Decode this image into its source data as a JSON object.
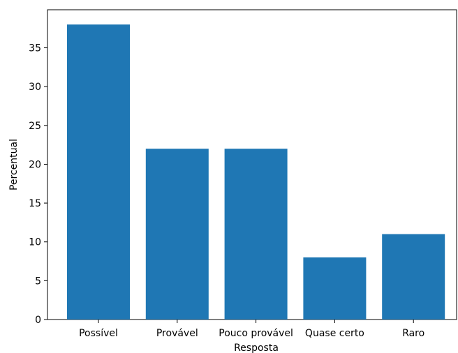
{
  "chart_data": {
    "type": "bar",
    "categories": [
      "Possível",
      "Provável",
      "Pouco provável",
      "Quase certo",
      "Raro"
    ],
    "values": [
      38,
      22,
      22,
      8,
      11
    ],
    "title": "",
    "xlabel": "Resposta",
    "ylabel": "Percentual",
    "ylim": [
      0,
      39.9
    ],
    "yticks": [
      0,
      5,
      10,
      15,
      20,
      25,
      30,
      35
    ],
    "grid": false,
    "bar_color": "#1f77b4"
  }
}
